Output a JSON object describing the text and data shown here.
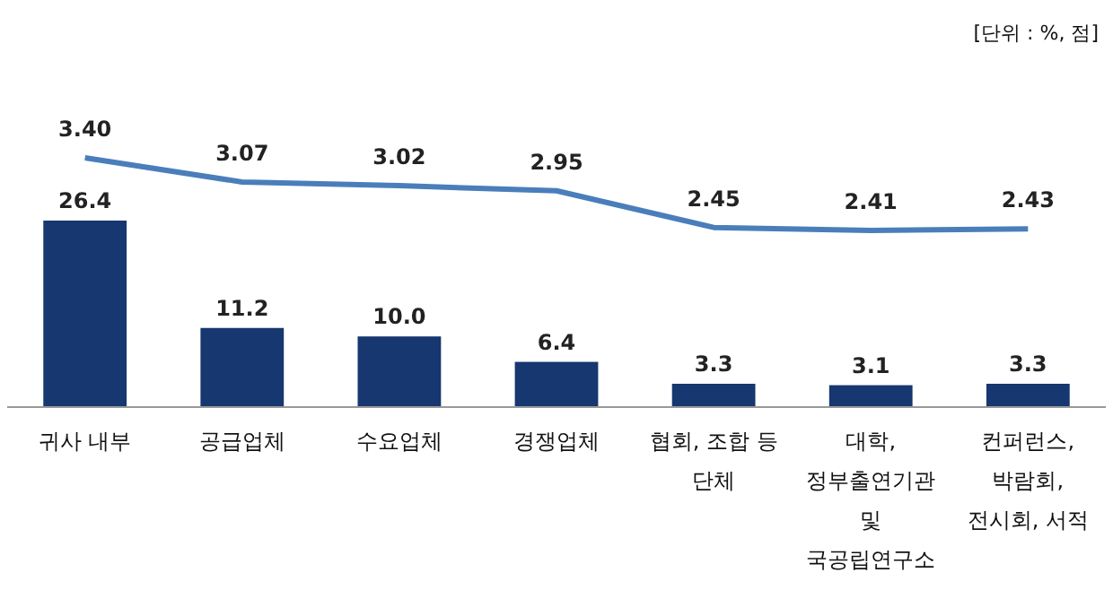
{
  "chart_data": {
    "type": "bar",
    "annotations": [
      "[단위 : %, 점]"
    ],
    "categories": [
      "귀사 내부",
      "공급업체",
      "수요업체",
      "경쟁업체",
      "협회, 조합 등 단체",
      "대학, 정부출연기관 및 국공립연구소",
      "컨퍼런스, 박람회, 전시회, 서적"
    ],
    "series": [
      {
        "color": "#16376f",
        "values": [
          26.4,
          11.2,
          10.0,
          6.4,
          3.3,
          3.1,
          3.3
        ],
        "value_labels": [
          "26.4",
          "11.2",
          "10.0",
          "6.4",
          "3.3",
          "3.1",
          "3.3"
        ]
      },
      {
        "type": "line",
        "axis": "y2",
        "color": "#4a7ebb",
        "values": [
          3.4,
          3.07,
          3.02,
          2.95,
          2.45,
          2.41,
          2.43
        ],
        "value_labels": [
          "3.40",
          "3.07",
          "3.02",
          "2.95",
          "2.45",
          "2.41",
          "2.43"
        ]
      }
    ],
    "grid": false
  }
}
